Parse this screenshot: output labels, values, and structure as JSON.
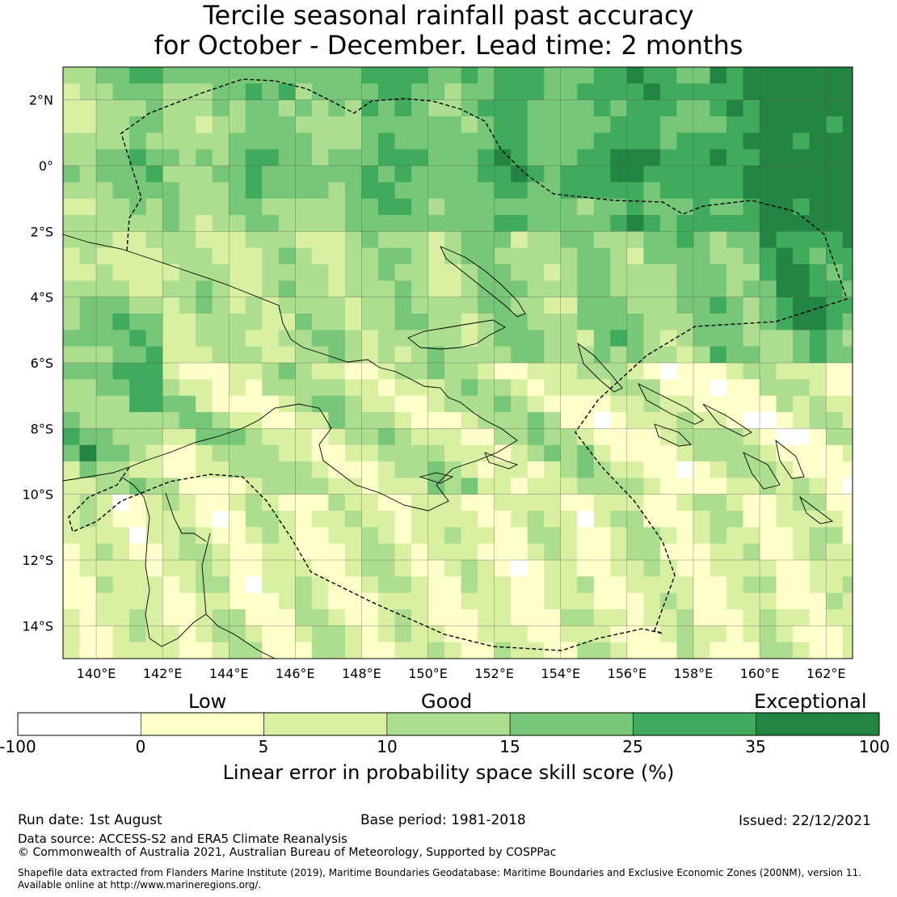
{
  "title": {
    "line1": "Tercile seasonal rainfall past accuracy",
    "line2": "for October - December. Lead time: 2 months"
  },
  "map": {
    "lat_labels": [
      "2°N",
      "0°",
      "2°S",
      "4°S",
      "6°S",
      "8°S",
      "10°S",
      "12°S",
      "14°S"
    ],
    "lon_labels": [
      "140°E",
      "142°E",
      "144°E",
      "146°E",
      "148°E",
      "150°E",
      "152°E",
      "154°E",
      "156°E",
      "158°E",
      "160°E",
      "162°E"
    ],
    "extent": {
      "lon_min": 139.0,
      "lon_max": 162.8,
      "lat_min": -15.0,
      "lat_max": 3.0
    },
    "grid": "on"
  },
  "colorbar": {
    "category_labels": [
      "Low",
      "Good",
      "Exceptional"
    ],
    "ticks": [
      "-100",
      "0",
      "5",
      "10",
      "15",
      "25",
      "35",
      "100"
    ],
    "colors": [
      "#ffffff",
      "#ffffcc",
      "#d9f0a3",
      "#addd8e",
      "#78c679",
      "#41ab5d",
      "#238443"
    ],
    "xlabel": "Linear error in probability space skill score (%)"
  },
  "footer": {
    "run_date": "Run date: 1st August",
    "base_period": "Base period: 1981-2018",
    "issued": "Issued: 22/12/2021",
    "data_source": "Data source: ACCESS-S2 and ERA5 Climate Reanalysis",
    "copyright": "© Commonwealth of Australia 2021, Australian Bureau of Meteorology, Supported by COSPPac",
    "shapefile_line1": "Shapefile data extracted from Flanders Marine Institute (2019), Maritime Boundaries Geodatabase: Maritime Boundaries and Exclusive Economic Zones (200NM), version 11.",
    "shapefile_line2": "Available online at http://www.marineregions.org/."
  }
}
